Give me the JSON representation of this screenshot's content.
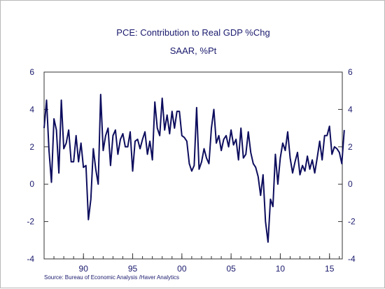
{
  "chart_data": {
    "type": "line",
    "title": "PCE: Contribution to Real GDP %Chg",
    "subtitle": "SAAR, %Pt",
    "source": "Source:  Bureau of Economic Analysis /Haver Analytics",
    "ylim": [
      -4,
      6
    ],
    "yticks": [
      -4,
      -2,
      0,
      2,
      4,
      6
    ],
    "xlim": [
      1986.0,
      2016.3
    ],
    "xtick_labels": [
      {
        "x": 1990.0,
        "label": "90"
      },
      {
        "x": 1995.0,
        "label": "95"
      },
      {
        "x": 2000.0,
        "label": "00"
      },
      {
        "x": 2005.0,
        "label": "05"
      },
      {
        "x": 2010.0,
        "label": "10"
      },
      {
        "x": 2015.0,
        "label": "15"
      }
    ],
    "grid": false,
    "colors": {
      "line": "#0d0d5e",
      "text": "#1a1a6e",
      "axis": "#333333"
    },
    "series": [
      {
        "start": 1986.0,
        "step": 0.25,
        "values": [
          3.0,
          4.5,
          1.8,
          0.1,
          3.5,
          2.9,
          0.6,
          4.5,
          1.9,
          2.2,
          2.9,
          1.2,
          1.2,
          2.6,
          1.2,
          2.2,
          0.9,
          1.0,
          -1.9,
          -0.8,
          1.9,
          0.8,
          0.0,
          4.8,
          1.8,
          2.6,
          3.0,
          1.0,
          2.6,
          2.9,
          1.6,
          2.4,
          2.7,
          2.0,
          2.0,
          2.8,
          0.7,
          2.3,
          2.4,
          1.9,
          2.4,
          2.8,
          1.6,
          2.3,
          1.3,
          4.4,
          3.0,
          2.6,
          4.6,
          2.9,
          3.7,
          2.7,
          3.9,
          3.0,
          3.9,
          3.9,
          2.6,
          2.5,
          2.3,
          1.1,
          0.7,
          1.0,
          4.1,
          0.8,
          1.2,
          1.9,
          1.4,
          1.1,
          3.0,
          4.0,
          2.2,
          2.6,
          1.8,
          2.4,
          2.6,
          2.0,
          2.9,
          2.1,
          2.4,
          1.3,
          3.0,
          1.4,
          1.6,
          2.8,
          1.7,
          1.1,
          0.9,
          0.4,
          -0.6,
          0.5,
          -2.0,
          -3.1,
          -0.8,
          -1.2,
          1.6,
          0.0,
          1.4,
          2.2,
          1.8,
          2.8,
          1.4,
          0.6,
          1.2,
          1.7,
          0.5,
          1.0,
          0.7,
          1.5,
          0.8,
          1.3,
          0.6,
          1.4,
          2.3,
          1.3,
          2.6,
          2.6,
          3.1,
          1.6,
          2.0,
          1.9,
          1.7,
          1.1,
          2.9
        ]
      }
    ]
  }
}
